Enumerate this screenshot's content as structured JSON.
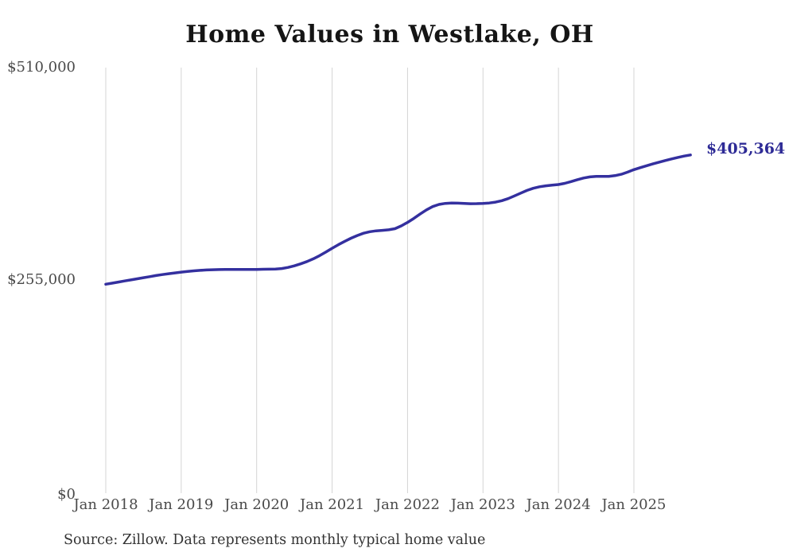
{
  "chart_data": {
    "type": "line",
    "title": "Home Values in Westlake, OH",
    "source": "Source: Zillow. Data represents monthly typical home value",
    "end_label": "$405,364",
    "end_value": 405364,
    "line_color": "#34309f",
    "end_label_color": "#2e2b96",
    "gridline_color": "#d4d4d4",
    "grid": "vertical-only",
    "ylabel": "",
    "xlabel": "",
    "ylim": [
      0,
      510000
    ],
    "y_ticks": [
      "$510,000",
      "$255,000",
      "$0"
    ],
    "y_tick_values": [
      510000,
      255000,
      0
    ],
    "x_ticks": [
      "Jan 2018",
      "Jan 2019",
      "Jan 2020",
      "Jan 2021",
      "Jan 2022",
      "Jan 2023",
      "Jan 2024",
      "Jan 2025"
    ],
    "series_start": "2018-01",
    "series_freq": "monthly",
    "series_name": "Typical home value ($)",
    "values": [
      250400,
      251700,
      253000,
      254300,
      255600,
      256900,
      258200,
      259500,
      260800,
      262000,
      263000,
      264000,
      264900,
      265700,
      266400,
      267000,
      267500,
      267800,
      268000,
      268100,
      268100,
      268100,
      268100,
      268200,
      268200,
      268300,
      268400,
      268600,
      269200,
      270500,
      272400,
      274800,
      277600,
      280800,
      284600,
      288900,
      293500,
      297800,
      301800,
      305500,
      308800,
      311500,
      313300,
      314400,
      315000,
      315600,
      317000,
      320300,
      324500,
      329300,
      334500,
      339500,
      343500,
      346000,
      347300,
      347700,
      347600,
      347200,
      346900,
      347000,
      347300,
      347800,
      348800,
      350500,
      353000,
      356200,
      359600,
      362800,
      365400,
      367200,
      368300,
      369100,
      369900,
      371300,
      373400,
      375700,
      377700,
      379000,
      379600,
      379600,
      379700,
      380500,
      382200,
      384700,
      387700,
      390100,
      392400,
      394600,
      396700,
      398700,
      400600,
      402400,
      404000,
      405364
    ]
  }
}
